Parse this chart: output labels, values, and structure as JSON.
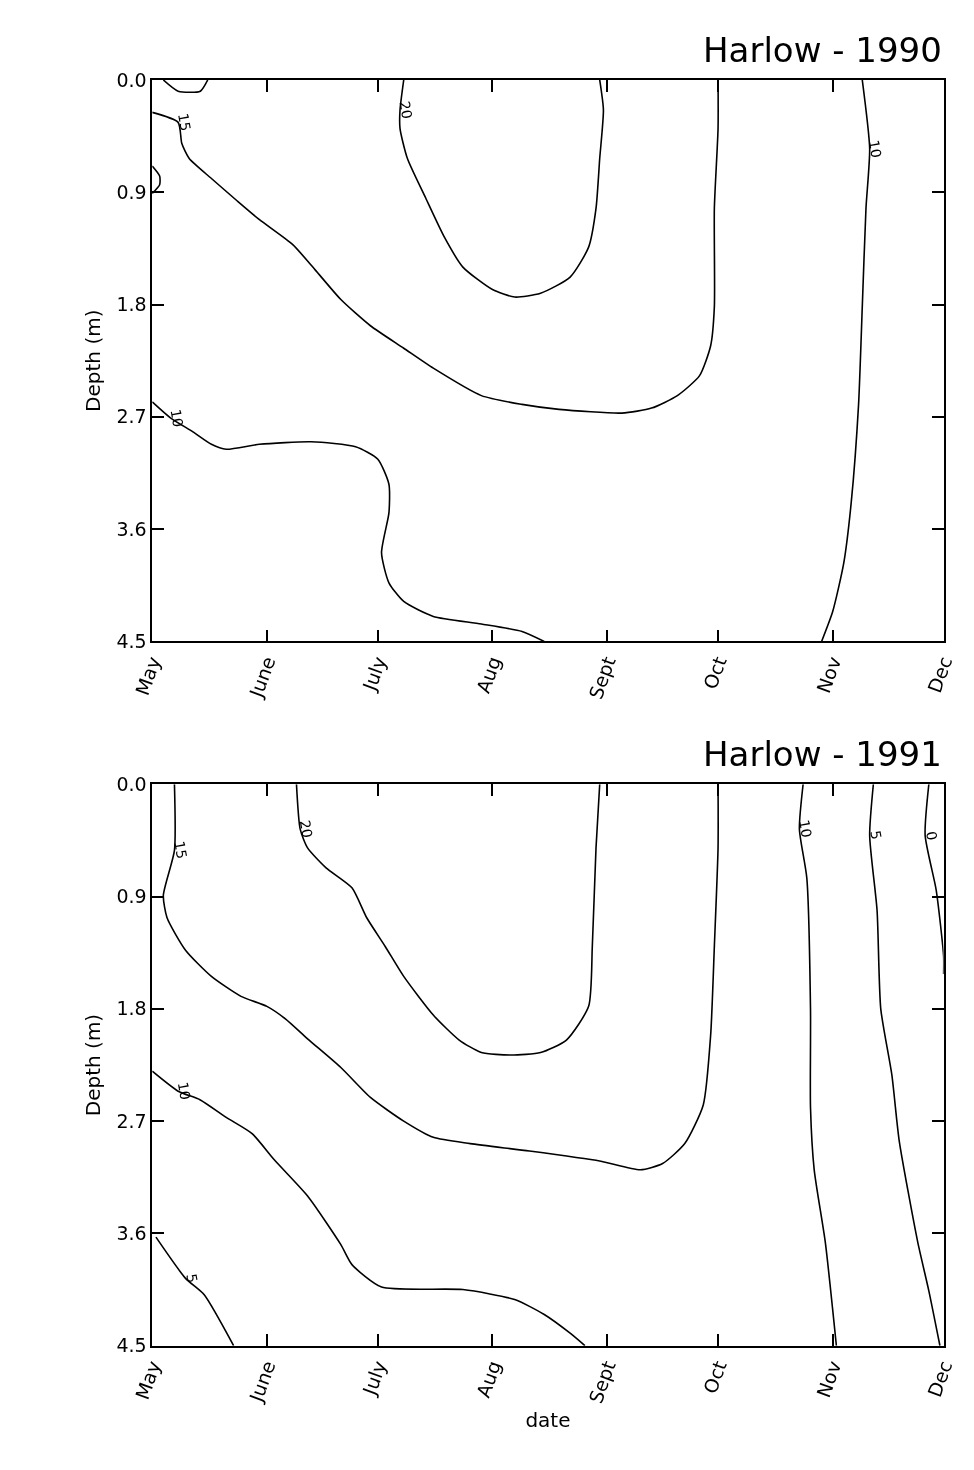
{
  "chart_data": [
    {
      "type": "line",
      "title": "Harlow - 1990",
      "ylabel": "Depth (m)",
      "xlim": [
        "1990-05-01",
        "1990-12-01"
      ],
      "xticks": [
        {
          "value": "1990-05-01",
          "label": "May"
        },
        {
          "value": "1990-06-01",
          "label": "June"
        },
        {
          "value": "1990-07-01",
          "label": "July"
        },
        {
          "value": "1990-08-01",
          "label": "Aug"
        },
        {
          "value": "1990-09-01",
          "label": "Sept"
        },
        {
          "value": "1990-10-01",
          "label": "Oct"
        },
        {
          "value": "1990-11-01",
          "label": "Nov"
        },
        {
          "value": "1990-12-01",
          "label": "Dec"
        }
      ],
      "ylim": [
        4.5,
        0
      ],
      "yticks": [
        {
          "value": 0,
          "label": "0.0"
        },
        {
          "value": 0.9,
          "label": "0.9"
        },
        {
          "value": 1.8,
          "label": "1.8"
        },
        {
          "value": 2.7,
          "label": "2.7"
        },
        {
          "value": 3.6,
          "label": "3.6"
        },
        {
          "value": 4.5,
          "label": "4.5"
        }
      ],
      "legend": false,
      "marker": "none",
      "line_style": "solid",
      "series": [
        {
          "name": "15",
          "color": "#000000",
          "x": [
            "1990-05-01",
            "1990-05-08",
            "1990-05-09",
            "1990-05-11",
            "1990-05-17",
            "1990-05-24",
            "1990-05-30",
            "1990-06-08",
            "1990-06-14",
            "1990-06-21",
            "1990-06-29",
            "1990-07-08",
            "1990-07-16",
            "1990-07-29",
            "1990-08-09",
            "1990-08-19",
            "1990-09-05",
            "1990-09-13",
            "1990-09-20",
            "1990-09-26",
            "1990-09-29",
            "1990-09-30",
            "1990-09-30",
            "1990-10-01",
            "1990-10-01"
          ],
          "values": [
            0.26,
            0.34,
            0.51,
            0.63,
            0.79,
            0.97,
            1.12,
            1.32,
            1.52,
            1.76,
            1.97,
            2.15,
            2.31,
            2.53,
            2.6,
            2.64,
            2.67,
            2.63,
            2.53,
            2.37,
            2.13,
            1.82,
            1.03,
            0.39,
            0
          ]
        },
        {
          "name": "20",
          "color": "#000000",
          "x": [
            "1990-07-08",
            "1990-07-07",
            "1990-07-07",
            "1990-07-09",
            "1990-07-14",
            "1990-07-19",
            "1990-07-24",
            "1990-08-01",
            "1990-08-07",
            "1990-08-14",
            "1990-08-22",
            "1990-08-27",
            "1990-08-29",
            "1990-08-30",
            "1990-08-31",
            "1990-08-30"
          ],
          "values": [
            0,
            0.24,
            0.39,
            0.63,
            0.95,
            1.26,
            1.5,
            1.68,
            1.74,
            1.71,
            1.58,
            1.34,
            1.03,
            0.63,
            0.24,
            0
          ]
        },
        {
          "name": "10",
          "color": "#000000",
          "x": [
            "1990-11-09",
            "1990-11-11",
            "1990-11-10",
            "1990-11-09",
            "1990-11-08",
            "1990-11-06",
            "1990-11-04",
            "1990-11-01",
            "1990-10-29"
          ],
          "values": [
            0,
            0.55,
            1.03,
            1.82,
            2.6,
            3.39,
            3.87,
            4.26,
            4.5
          ]
        },
        {
          "name": "10",
          "color": "#000000",
          "x": [
            "1990-05-01",
            "1990-05-06",
            "1990-05-12",
            "1990-05-17",
            "1990-05-21",
            "1990-05-30",
            "1990-06-13",
            "1990-06-25",
            "1990-07-01",
            "1990-07-04",
            "1990-07-04",
            "1990-07-02",
            "1990-07-04",
            "1990-07-08",
            "1990-07-16",
            "1990-07-29",
            "1990-08-09",
            "1990-08-15"
          ],
          "values": [
            2.58,
            2.71,
            2.82,
            2.92,
            2.96,
            2.92,
            2.9,
            2.94,
            3.04,
            3.24,
            3.47,
            3.79,
            4.03,
            4.18,
            4.3,
            4.36,
            4.42,
            4.5
          ]
        },
        {
          "color": "#000000",
          "x": [
            "1990-05-04",
            "1990-05-08",
            "1990-05-14",
            "1990-05-16"
          ],
          "values": [
            0,
            0.09,
            0.09,
            0
          ]
        },
        {
          "color": "#000000",
          "x": [
            "1990-05-01",
            "1990-05-03",
            "1990-05-03",
            "1990-05-01"
          ],
          "values": [
            0.69,
            0.77,
            0.84,
            0.91
          ]
        }
      ]
    },
    {
      "type": "line",
      "title": "Harlow - 1991",
      "ylabel": "Depth (m)",
      "xlabel": "date",
      "xlim": [
        "1991-05-01",
        "1991-12-01"
      ],
      "xticks": [
        {
          "value": "1991-05-01",
          "label": "May"
        },
        {
          "value": "1991-06-01",
          "label": "June"
        },
        {
          "value": "1991-07-01",
          "label": "July"
        },
        {
          "value": "1991-08-01",
          "label": "Aug"
        },
        {
          "value": "1991-09-01",
          "label": "Sept"
        },
        {
          "value": "1991-10-01",
          "label": "Oct"
        },
        {
          "value": "1991-11-01",
          "label": "Nov"
        },
        {
          "value": "1991-12-01",
          "label": "Dec"
        }
      ],
      "ylim": [
        4.5,
        0
      ],
      "yticks": [
        {
          "value": 0,
          "label": "0.0"
        },
        {
          "value": 0.9,
          "label": "0.9"
        },
        {
          "value": 1.8,
          "label": "1.8"
        },
        {
          "value": 2.7,
          "label": "2.7"
        },
        {
          "value": 3.6,
          "label": "3.6"
        },
        {
          "value": 4.5,
          "label": "4.5"
        }
      ],
      "legend": false,
      "marker": "none",
      "line_style": "solid",
      "series": [
        {
          "name": "15",
          "color": "#000000",
          "x": [
            "1991-05-07",
            "1991-05-07",
            "1991-05-04",
            "1991-05-05",
            "1991-05-10",
            "1991-05-17",
            "1991-05-25",
            "1991-06-01",
            "1991-06-06",
            "1991-06-12",
            "1991-06-21",
            "1991-06-29",
            "1991-07-08",
            "1991-07-16",
            "1991-07-26",
            "1991-08-11",
            "1991-08-30",
            "1991-09-10",
            "1991-09-16",
            "1991-09-22",
            "1991-09-27",
            "1991-09-29",
            "1991-09-30",
            "1991-10-01",
            "1991-10-01"
          ],
          "values": [
            0,
            0.53,
            0.89,
            1.07,
            1.33,
            1.54,
            1.7,
            1.78,
            1.88,
            2.04,
            2.27,
            2.51,
            2.7,
            2.83,
            2.88,
            2.94,
            3.02,
            3.09,
            3.04,
            2.88,
            2.57,
            2.01,
            1.3,
            0.51,
            0
          ]
        },
        {
          "name": "20",
          "color": "#000000",
          "x": [
            "1991-06-09",
            "1991-06-10",
            "1991-06-12",
            "1991-06-17",
            "1991-06-24",
            "1991-06-28",
            "1991-07-03",
            "1991-07-08",
            "1991-07-16",
            "1991-07-23",
            "1991-07-29",
            "1991-08-06",
            "1991-08-14",
            "1991-08-21",
            "1991-08-27",
            "1991-08-28",
            "1991-08-29",
            "1991-08-30"
          ],
          "values": [
            0,
            0.36,
            0.51,
            0.67,
            0.83,
            1.07,
            1.3,
            1.54,
            1.85,
            2.05,
            2.15,
            2.17,
            2.15,
            2.05,
            1.78,
            1.3,
            0.51,
            0
          ]
        },
        {
          "name": "10",
          "color": "#000000",
          "x": [
            "1991-10-24",
            "1991-10-23",
            "1991-10-25",
            "1991-10-26",
            "1991-10-26",
            "1991-10-27",
            "1991-10-30",
            "1991-11-02"
          ],
          "values": [
            0,
            0.36,
            0.75,
            1.8,
            2.59,
            3.09,
            3.67,
            4.5
          ]
        },
        {
          "name": "5",
          "color": "#000000",
          "x": [
            "1991-11-12",
            "1991-11-11",
            "1991-11-13",
            "1991-11-14",
            "1991-11-17",
            "1991-11-19",
            "1991-11-24",
            "1991-11-27",
            "1991-11-30"
          ],
          "values": [
            0,
            0.41,
            1.01,
            1.8,
            2.33,
            2.86,
            3.67,
            4.06,
            4.5
          ]
        },
        {
          "name": "0",
          "color": "#000000",
          "x": [
            "1991-11-27",
            "1991-11-26",
            "1991-11-29",
            "1991-12-01",
            "1991-12-01"
          ],
          "values": [
            0,
            0.41,
            0.85,
            1.38,
            1.52
          ]
        },
        {
          "name": "10",
          "color": "#000000",
          "x": [
            "1991-05-01",
            "1991-05-08",
            "1991-05-14",
            "1991-05-21",
            "1991-05-28",
            "1991-06-03",
            "1991-06-12",
            "1991-06-21",
            "1991-06-24",
            "1991-07-02",
            "1991-07-24",
            "1991-08-07",
            "1991-08-15",
            "1991-08-22",
            "1991-08-26"
          ],
          "values": [
            2.3,
            2.46,
            2.53,
            2.67,
            2.8,
            3.01,
            3.3,
            3.69,
            3.85,
            4.03,
            4.05,
            4.13,
            4.25,
            4.4,
            4.5
          ]
        },
        {
          "name": "5",
          "color": "#000000",
          "x": [
            "1991-05-02",
            "1991-05-10",
            "1991-05-15",
            "1991-05-23"
          ],
          "values": [
            3.63,
            3.96,
            4.09,
            4.5
          ]
        }
      ]
    }
  ]
}
